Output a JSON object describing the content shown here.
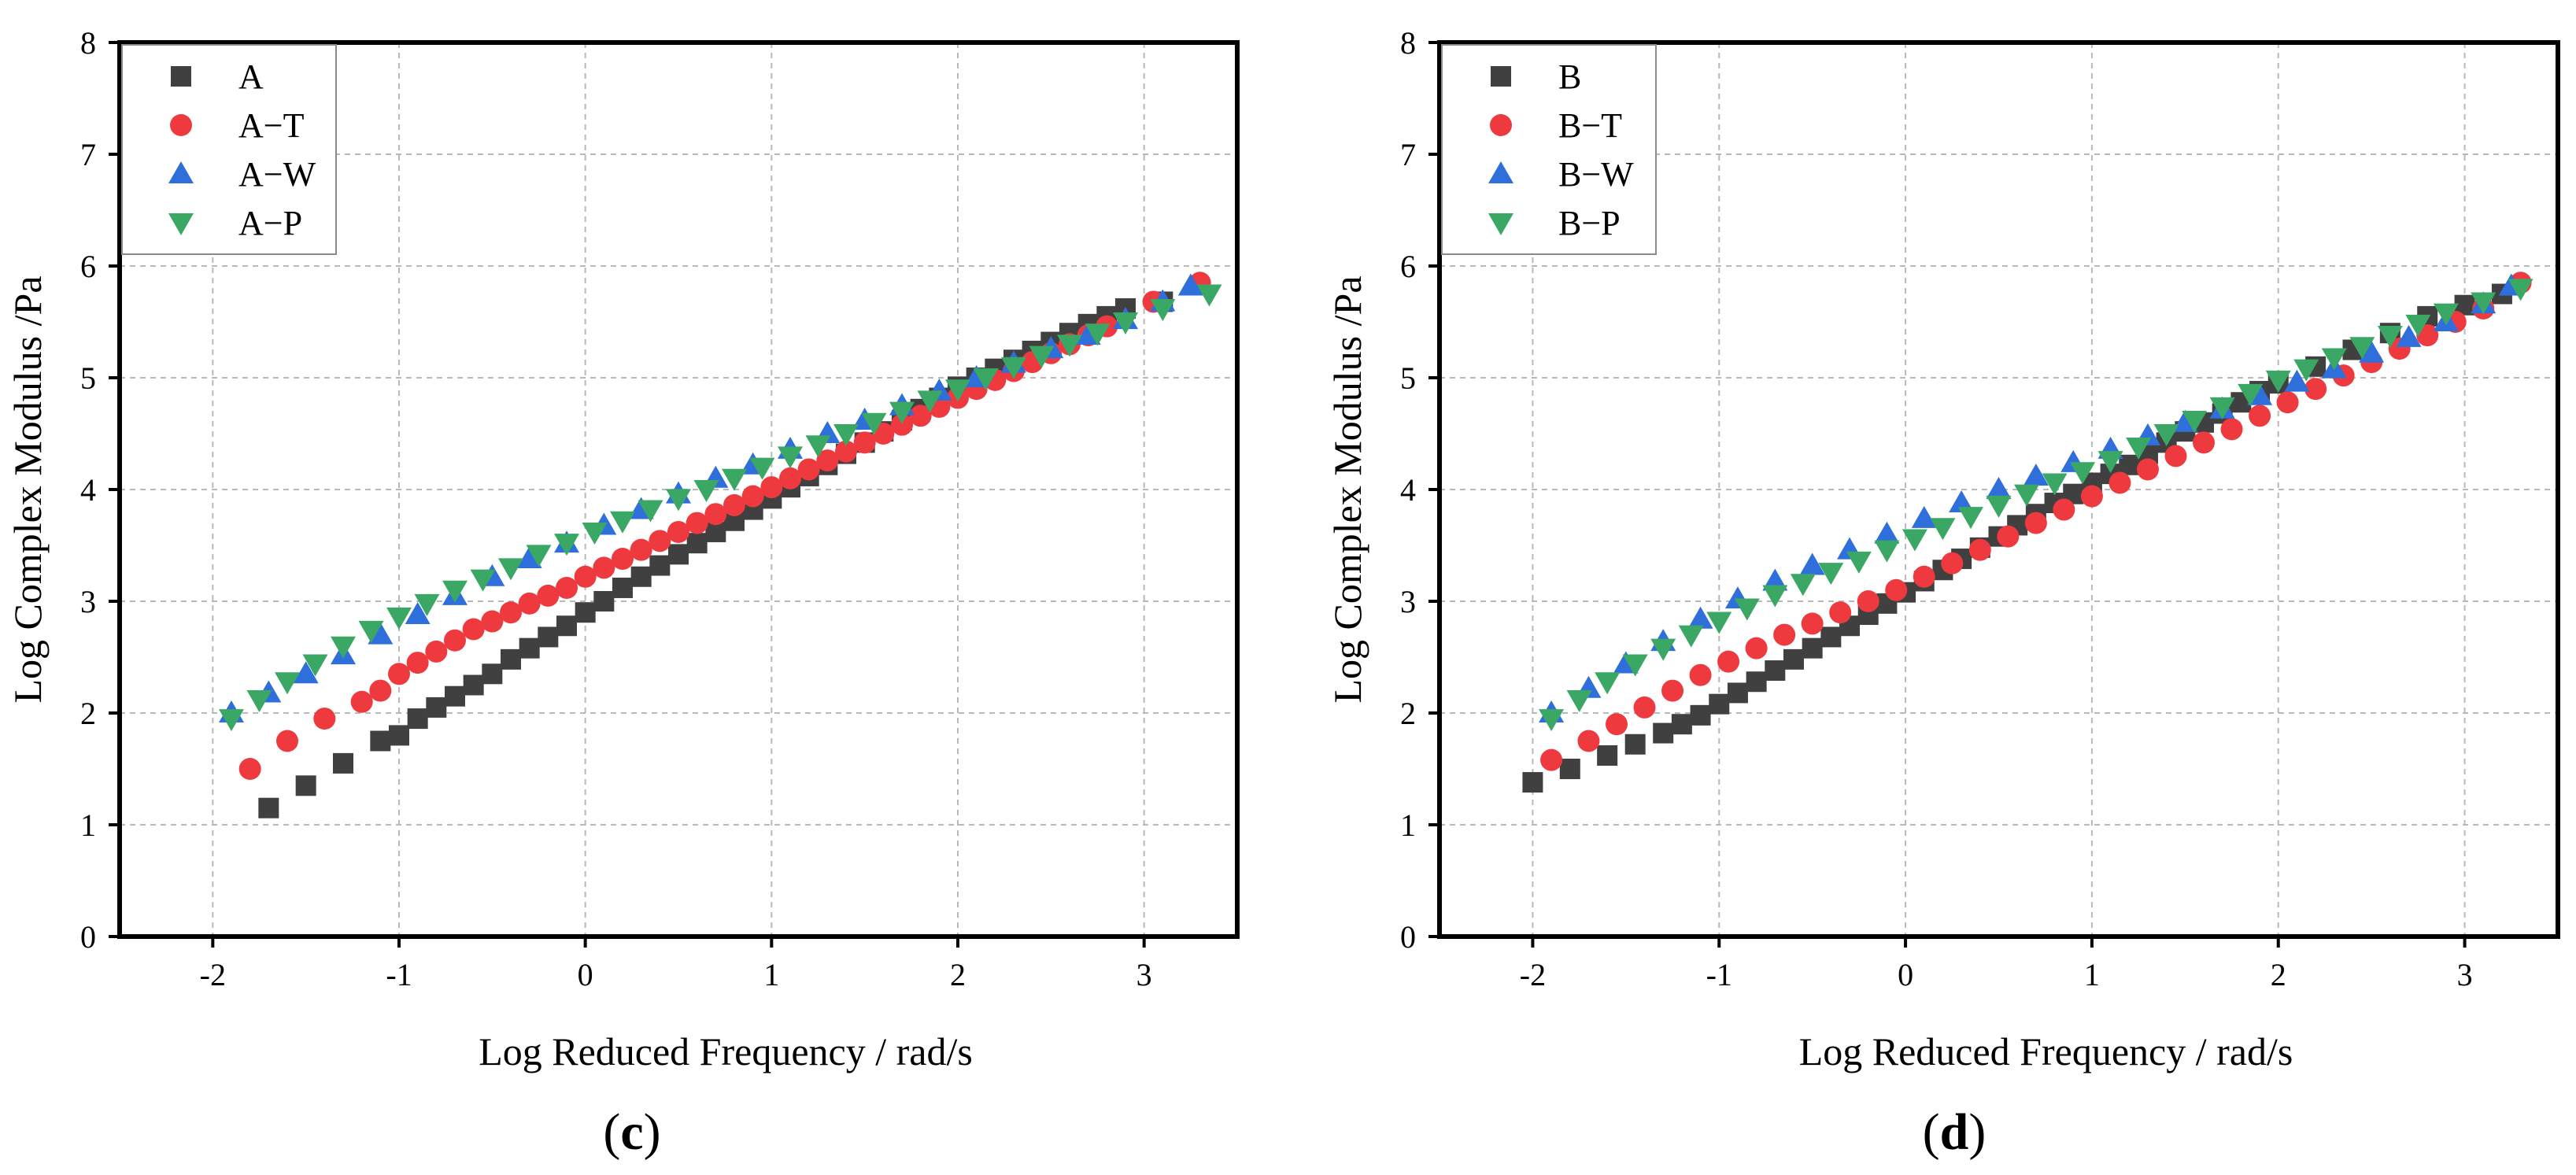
{
  "colors": {
    "base": "#404040",
    "t": "#ee3a3e",
    "w": "#2f6fdb",
    "p": "#3aa864"
  },
  "chart_data": [
    {
      "type": "scatter",
      "panel_label": "(c)",
      "xlabel": "Log Reduced Frequency / rad/s",
      "ylabel": "Log Complex Modulus /Pa",
      "xlim": [
        -2.5,
        3.5
      ],
      "ylim": [
        0,
        8
      ],
      "xticks": [
        -2,
        -1,
        0,
        1,
        2,
        3
      ],
      "yticks": [
        0,
        1,
        2,
        3,
        4,
        5,
        6,
        7,
        8
      ],
      "grid": true,
      "legend": "top-left",
      "series": [
        {
          "name": "A",
          "marker": "square",
          "color": "#404040",
          "x": [
            -1.7,
            -1.5,
            -1.3,
            -1.1,
            -1.0,
            -0.9,
            -0.8,
            -0.7,
            -0.6,
            -0.5,
            -0.4,
            -0.3,
            -0.2,
            -0.1,
            0.0,
            0.1,
            0.2,
            0.3,
            0.4,
            0.5,
            0.6,
            0.7,
            0.8,
            0.9,
            1.0,
            1.1,
            1.2,
            1.3,
            1.4,
            1.5,
            1.6,
            1.7,
            1.8,
            1.9,
            2.0,
            2.1,
            2.2,
            2.3,
            2.4,
            2.5,
            2.6,
            2.7,
            2.8,
            2.9,
            3.1
          ],
          "y": [
            1.15,
            1.35,
            1.55,
            1.75,
            1.8,
            1.95,
            2.05,
            2.15,
            2.25,
            2.35,
            2.48,
            2.58,
            2.68,
            2.78,
            2.9,
            3.0,
            3.12,
            3.22,
            3.32,
            3.42,
            3.52,
            3.62,
            3.72,
            3.82,
            3.92,
            4.02,
            4.12,
            4.22,
            4.32,
            4.42,
            4.52,
            4.62,
            4.72,
            4.82,
            4.92,
            5.0,
            5.08,
            5.16,
            5.24,
            5.32,
            5.4,
            5.48,
            5.55,
            5.62,
            5.68
          ]
        },
        {
          "name": "A−T",
          "marker": "circle",
          "color": "#ee3a3e",
          "x": [
            -1.8,
            -1.6,
            -1.4,
            -1.2,
            -1.1,
            -1.0,
            -0.9,
            -0.8,
            -0.7,
            -0.6,
            -0.5,
            -0.4,
            -0.3,
            -0.2,
            -0.1,
            0.0,
            0.1,
            0.2,
            0.3,
            0.4,
            0.5,
            0.6,
            0.7,
            0.8,
            0.9,
            1.0,
            1.1,
            1.2,
            1.3,
            1.4,
            1.5,
            1.6,
            1.7,
            1.8,
            1.9,
            2.0,
            2.1,
            2.2,
            2.3,
            2.4,
            2.5,
            2.6,
            2.7,
            2.8,
            3.05,
            3.3
          ],
          "y": [
            1.5,
            1.75,
            1.95,
            2.1,
            2.2,
            2.35,
            2.45,
            2.55,
            2.65,
            2.75,
            2.82,
            2.9,
            2.98,
            3.05,
            3.12,
            3.22,
            3.3,
            3.38,
            3.46,
            3.54,
            3.62,
            3.7,
            3.78,
            3.86,
            3.94,
            4.02,
            4.1,
            4.18,
            4.26,
            4.34,
            4.42,
            4.5,
            4.58,
            4.66,
            4.74,
            4.82,
            4.9,
            4.98,
            5.06,
            5.14,
            5.22,
            5.3,
            5.38,
            5.46,
            5.68,
            5.85
          ]
        },
        {
          "name": "A−W",
          "marker": "triangle-up",
          "color": "#2f6fdb",
          "x": [
            -1.9,
            -1.7,
            -1.5,
            -1.3,
            -1.1,
            -0.9,
            -0.7,
            -0.5,
            -0.3,
            -0.1,
            0.1,
            0.3,
            0.5,
            0.7,
            0.9,
            1.1,
            1.3,
            1.5,
            1.7,
            1.9,
            2.1,
            2.3,
            2.5,
            2.7,
            2.9,
            3.1,
            3.25
          ],
          "y": [
            2.0,
            2.18,
            2.35,
            2.52,
            2.7,
            2.88,
            3.05,
            3.22,
            3.38,
            3.52,
            3.68,
            3.82,
            3.96,
            4.1,
            4.22,
            4.36,
            4.5,
            4.62,
            4.75,
            4.88,
            5.0,
            5.13,
            5.26,
            5.38,
            5.52,
            5.68,
            5.82
          ]
        },
        {
          "name": "A−P",
          "marker": "triangle-down",
          "color": "#3aa864",
          "x": [
            -1.9,
            -1.75,
            -1.6,
            -1.45,
            -1.3,
            -1.15,
            -1.0,
            -0.85,
            -0.7,
            -0.55,
            -0.4,
            -0.25,
            -0.1,
            0.05,
            0.2,
            0.35,
            0.5,
            0.65,
            0.8,
            0.95,
            1.1,
            1.25,
            1.4,
            1.55,
            1.7,
            1.85,
            2.0,
            2.15,
            2.3,
            2.45,
            2.6,
            2.75,
            2.9,
            3.1,
            3.35
          ],
          "y": [
            1.95,
            2.12,
            2.28,
            2.44,
            2.6,
            2.74,
            2.86,
            2.98,
            3.1,
            3.2,
            3.3,
            3.42,
            3.52,
            3.62,
            3.72,
            3.82,
            3.92,
            4.0,
            4.1,
            4.2,
            4.3,
            4.4,
            4.5,
            4.6,
            4.7,
            4.8,
            4.9,
            5.0,
            5.1,
            5.2,
            5.3,
            5.4,
            5.5,
            5.62,
            5.75
          ]
        }
      ]
    },
    {
      "type": "scatter",
      "panel_label": "(d)",
      "xlabel": "Log Reduced Frequency / rad/s",
      "ylabel": "Log Complex Modulus /Pa",
      "xlim": [
        -2.5,
        3.5
      ],
      "ylim": [
        0,
        8
      ],
      "xticks": [
        -2,
        -1,
        0,
        1,
        2,
        3
      ],
      "yticks": [
        0,
        1,
        2,
        3,
        4,
        5,
        6,
        7,
        8
      ],
      "grid": true,
      "legend": "top-left",
      "series": [
        {
          "name": "B",
          "marker": "square",
          "color": "#404040",
          "x": [
            -2.0,
            -1.8,
            -1.6,
            -1.45,
            -1.3,
            -1.2,
            -1.1,
            -1.0,
            -0.9,
            -0.8,
            -0.7,
            -0.6,
            -0.5,
            -0.4,
            -0.3,
            -0.2,
            -0.1,
            0.0,
            0.1,
            0.2,
            0.3,
            0.4,
            0.5,
            0.6,
            0.7,
            0.8,
            0.9,
            1.0,
            1.1,
            1.2,
            1.3,
            1.4,
            1.5,
            1.6,
            1.7,
            1.8,
            1.9,
            2.0,
            2.2,
            2.4,
            2.6,
            2.8,
            3.0,
            3.2
          ],
          "y": [
            1.38,
            1.5,
            1.62,
            1.72,
            1.82,
            1.9,
            1.98,
            2.08,
            2.18,
            2.28,
            2.38,
            2.48,
            2.58,
            2.68,
            2.78,
            2.88,
            2.98,
            3.08,
            3.18,
            3.28,
            3.38,
            3.48,
            3.58,
            3.68,
            3.78,
            3.88,
            3.96,
            4.06,
            4.14,
            4.22,
            4.32,
            4.42,
            4.52,
            4.6,
            4.68,
            4.78,
            4.88,
            4.95,
            5.1,
            5.25,
            5.4,
            5.55,
            5.65,
            5.75
          ]
        },
        {
          "name": "B−T",
          "marker": "circle",
          "color": "#ee3a3e",
          "x": [
            -1.9,
            -1.7,
            -1.55,
            -1.4,
            -1.25,
            -1.1,
            -0.95,
            -0.8,
            -0.65,
            -0.5,
            -0.35,
            -0.2,
            -0.05,
            0.1,
            0.25,
            0.4,
            0.55,
            0.7,
            0.85,
            1.0,
            1.15,
            1.3,
            1.45,
            1.6,
            1.75,
            1.9,
            2.05,
            2.2,
            2.35,
            2.5,
            2.65,
            2.8,
            2.95,
            3.1,
            3.3
          ],
          "y": [
            1.58,
            1.75,
            1.9,
            2.05,
            2.2,
            2.34,
            2.46,
            2.58,
            2.7,
            2.8,
            2.9,
            3.0,
            3.1,
            3.22,
            3.34,
            3.46,
            3.58,
            3.7,
            3.82,
            3.94,
            4.06,
            4.18,
            4.3,
            4.42,
            4.54,
            4.66,
            4.78,
            4.9,
            5.02,
            5.14,
            5.26,
            5.38,
            5.5,
            5.62,
            5.85
          ]
        },
        {
          "name": "B−W",
          "marker": "triangle-up",
          "color": "#2f6fdb",
          "x": [
            -1.9,
            -1.7,
            -1.5,
            -1.3,
            -1.1,
            -0.9,
            -0.7,
            -0.5,
            -0.3,
            -0.1,
            0.1,
            0.3,
            0.5,
            0.7,
            0.9,
            1.1,
            1.3,
            1.5,
            1.7,
            1.9,
            2.1,
            2.3,
            2.5,
            2.7,
            2.9,
            3.1,
            3.25
          ],
          "y": [
            2.0,
            2.22,
            2.44,
            2.64,
            2.84,
            3.02,
            3.18,
            3.32,
            3.46,
            3.6,
            3.74,
            3.88,
            4.0,
            4.12,
            4.24,
            4.36,
            4.48,
            4.6,
            4.72,
            4.84,
            4.96,
            5.08,
            5.22,
            5.36,
            5.5,
            5.66,
            5.82
          ]
        },
        {
          "name": "B−P",
          "marker": "triangle-down",
          "color": "#3aa864",
          "x": [
            -1.9,
            -1.75,
            -1.6,
            -1.45,
            -1.3,
            -1.15,
            -1.0,
            -0.85,
            -0.7,
            -0.55,
            -0.4,
            -0.25,
            -0.1,
            0.05,
            0.2,
            0.35,
            0.5,
            0.65,
            0.8,
            0.95,
            1.1,
            1.25,
            1.4,
            1.55,
            1.7,
            1.85,
            2.0,
            2.15,
            2.3,
            2.45,
            2.6,
            2.75,
            2.9,
            3.1,
            3.3
          ],
          "y": [
            1.95,
            2.12,
            2.28,
            2.44,
            2.58,
            2.7,
            2.82,
            2.94,
            3.06,
            3.16,
            3.26,
            3.36,
            3.46,
            3.56,
            3.66,
            3.76,
            3.86,
            3.96,
            4.06,
            4.16,
            4.26,
            4.38,
            4.5,
            4.62,
            4.74,
            4.86,
            4.98,
            5.08,
            5.18,
            5.28,
            5.38,
            5.48,
            5.58,
            5.68,
            5.8
          ]
        }
      ]
    }
  ]
}
